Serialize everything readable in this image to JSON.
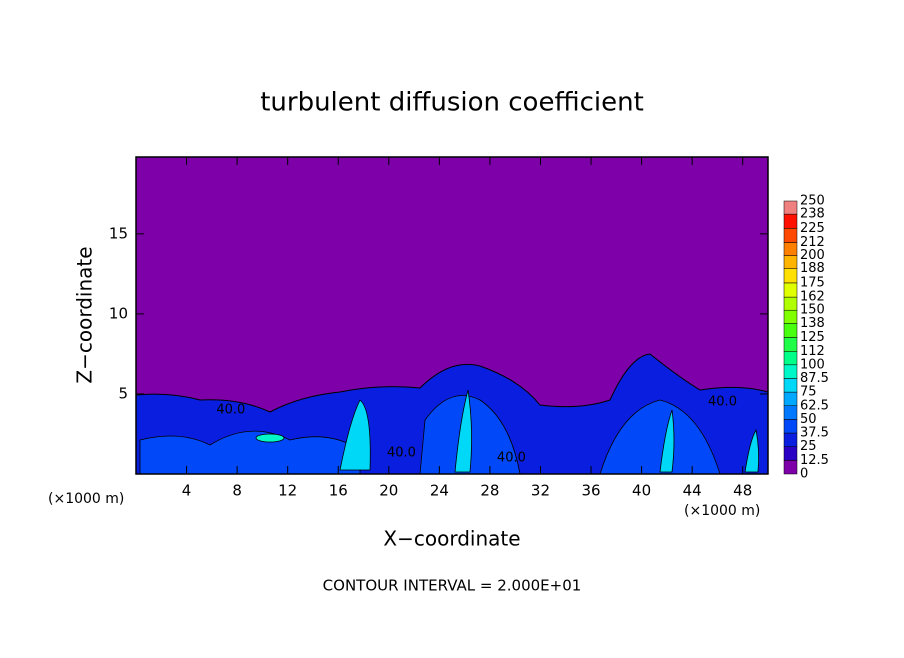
{
  "chart_data": {
    "type": "contour",
    "title": "turbulent diffusion coefficient",
    "xlabel": "X−coordinate",
    "ylabel": "Z−coordinate",
    "x_unit": "(×1000 m)",
    "y_unit": "(×1000 m)",
    "note": "CONTOUR INTERVAL = 2.000E+01",
    "xlim": [
      0,
      50
    ],
    "xticks": [
      4,
      8,
      12,
      16,
      20,
      24,
      28,
      32,
      36,
      40,
      44,
      48
    ],
    "ylim": [
      0,
      19.8
    ],
    "yticks": [
      5,
      10,
      15
    ],
    "levels": [
      0,
      12.5,
      25,
      37.5,
      50,
      62.5,
      75,
      87.5,
      100,
      112,
      125,
      138,
      150,
      162,
      175,
      188,
      200,
      212,
      225,
      238,
      250
    ],
    "colors": [
      "#7d00a8",
      "#2a00c4",
      "#0a1ee0",
      "#0048f8",
      "#0078ff",
      "#00a8ff",
      "#00d8f8",
      "#00f8c8",
      "#00ff88",
      "#20ff48",
      "#48ff10",
      "#80ff00",
      "#b0ff00",
      "#e0ff00",
      "#ffe000",
      "#ffb400",
      "#ff8000",
      "#ff4800",
      "#ff1000",
      "#f08080"
    ],
    "contour_labels": [
      {
        "label": "40.0",
        "x": 7.5,
        "y": 4.0
      },
      {
        "label": "40.0",
        "x": 21,
        "y": 1.3
      },
      {
        "label": "40.0",
        "x": 29.7,
        "y": 1.0
      },
      {
        "label": "40.0",
        "x": 46.4,
        "y": 4.5
      }
    ]
  }
}
